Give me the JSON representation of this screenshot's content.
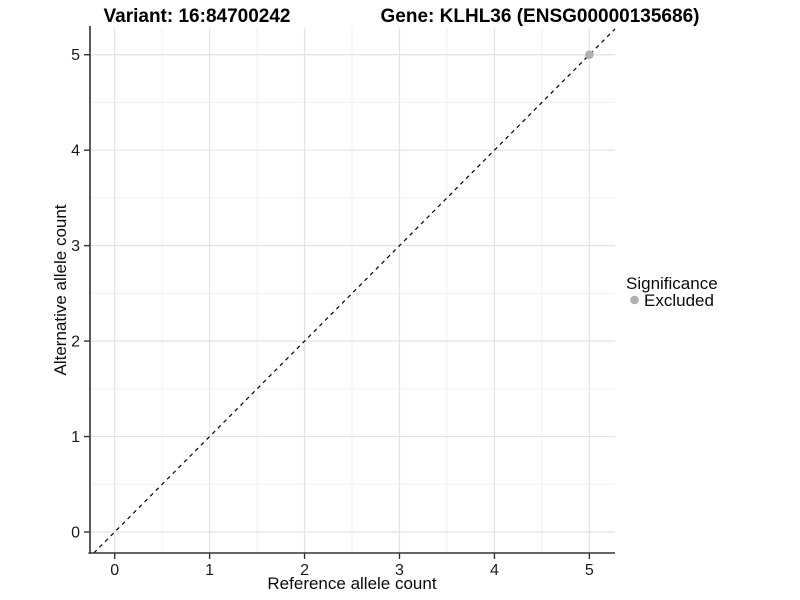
{
  "chart_data": {
    "type": "scatter",
    "title_left": "Variant: 16:84700242",
    "title_right": "Gene: KLHL36 (ENSG00000135686)",
    "xlabel": "Reference allele count",
    "ylabel": "Alternative allele count",
    "xlim": [
      -0.26,
      5.27
    ],
    "ylim": [
      -0.22,
      5.28
    ],
    "xticks": [
      0,
      1,
      2,
      3,
      4,
      5
    ],
    "yticks": [
      0,
      1,
      2,
      3,
      4,
      5
    ],
    "minor_xticks": [
      0.5,
      1.5,
      2.5,
      3.5,
      4.5
    ],
    "minor_yticks": [
      0.5,
      1.5,
      2.5,
      3.5,
      4.5
    ],
    "grid": "major+minor",
    "identity_line": {
      "slope": 1,
      "intercept": 0,
      "style": "dashed",
      "color": "#000000"
    },
    "points": [
      {
        "x": 5,
        "y": 5,
        "significance": "Excluded"
      }
    ],
    "legend": {
      "title": "Significance",
      "position": "right",
      "items": [
        {
          "label": "Excluded",
          "color": "#b0b0b0"
        }
      ]
    },
    "colors": {
      "background": "#ffffff",
      "grid_major": "#e3e3e3",
      "grid_minor": "#f0f0f0",
      "axis_line": "#333333",
      "tick_mark": "#333333",
      "point": "#b0b0b0"
    }
  }
}
